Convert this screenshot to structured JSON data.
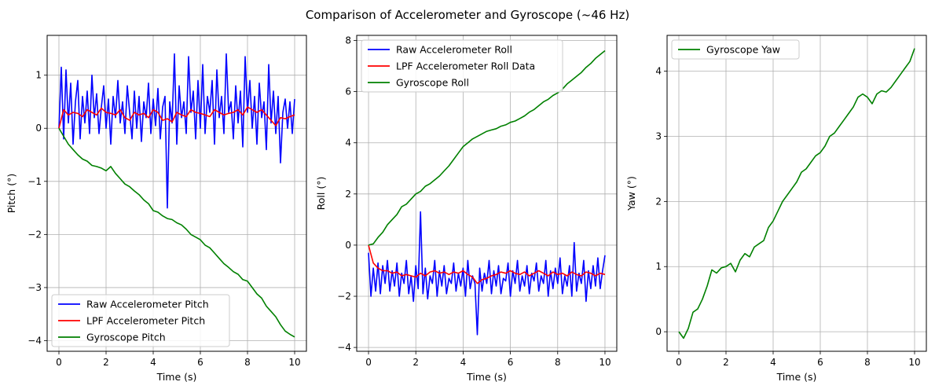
{
  "figure": {
    "title": "Comparison of Accelerometer and Gyroscope (~46 Hz)"
  },
  "colors": {
    "raw": "#0000ff",
    "lpf": "#ff0000",
    "gyro": "#008000",
    "grid": "#b0b0b0"
  },
  "chart_data": [
    {
      "type": "line",
      "xlabel": "Time (s)",
      "ylabel": "Pitch (°)",
      "xlim": [
        -0.5,
        10.5
      ],
      "ylim": [
        -4.2,
        1.75
      ],
      "xticks": [
        0,
        2,
        4,
        6,
        8,
        10
      ],
      "xtick_labels": [
        "0",
        "2",
        "4",
        "6",
        "8",
        "10"
      ],
      "yticks": [
        -4,
        -3,
        -2,
        -1,
        0,
        1
      ],
      "ytick_labels": [
        "−4",
        "−3",
        "−2",
        "−1",
        "0",
        "1"
      ],
      "grid": true,
      "legend_position": "lower-left",
      "series": [
        {
          "name": "Raw Accelerometer Pitch",
          "color": "#0000ff",
          "x": [
            0,
            0.1,
            0.2,
            0.3,
            0.4,
            0.5,
            0.6,
            0.7,
            0.8,
            0.9,
            1.0,
            1.1,
            1.2,
            1.3,
            1.4,
            1.5,
            1.6,
            1.7,
            1.8,
            1.9,
            2.0,
            2.1,
            2.2,
            2.3,
            2.4,
            2.5,
            2.6,
            2.7,
            2.8,
            2.9,
            3.0,
            3.1,
            3.2,
            3.3,
            3.4,
            3.5,
            3.6,
            3.7,
            3.8,
            3.9,
            4.0,
            4.1,
            4.2,
            4.3,
            4.4,
            4.5,
            4.6,
            4.7,
            4.8,
            4.9,
            5.0,
            5.1,
            5.2,
            5.3,
            5.4,
            5.5,
            5.6,
            5.7,
            5.8,
            5.9,
            6.0,
            6.1,
            6.2,
            6.3,
            6.4,
            6.5,
            6.6,
            6.7,
            6.8,
            6.9,
            7.0,
            7.1,
            7.2,
            7.3,
            7.4,
            7.5,
            7.6,
            7.7,
            7.8,
            7.9,
            8.0,
            8.1,
            8.2,
            8.3,
            8.4,
            8.5,
            8.6,
            8.7,
            8.8,
            8.9,
            9.0,
            9.1,
            9.2,
            9.3,
            9.4,
            9.5,
            9.6,
            9.7,
            9.8,
            9.9,
            10.0
          ],
          "y": [
            0.0,
            1.15,
            -0.2,
            1.1,
            0.1,
            0.85,
            -0.3,
            0.5,
            0.9,
            -0.2,
            0.6,
            0.1,
            0.7,
            -0.1,
            1.0,
            0.2,
            0.65,
            -0.1,
            0.4,
            0.8,
            0.0,
            0.55,
            -0.3,
            0.6,
            0.2,
            0.9,
            0.1,
            0.5,
            -0.1,
            0.8,
            0.3,
            -0.2,
            0.7,
            0.0,
            0.6,
            -0.25,
            0.5,
            0.2,
            0.85,
            -0.1,
            0.55,
            0.05,
            0.75,
            -0.2,
            0.4,
            0.6,
            -1.5,
            0.5,
            0.1,
            1.4,
            -0.3,
            0.8,
            0.2,
            0.5,
            -0.1,
            1.35,
            0.3,
            0.7,
            -0.2,
            0.9,
            0.0,
            1.2,
            -0.1,
            0.6,
            0.3,
            0.9,
            -0.3,
            1.1,
            0.2,
            0.6,
            -0.1,
            1.4,
            0.3,
            0.5,
            -0.2,
            0.8,
            0.1,
            0.7,
            -0.35,
            1.35,
            0.3,
            0.9,
            0.0,
            0.6,
            -0.3,
            0.85,
            0.2,
            0.5,
            -0.4,
            1.2,
            0.1,
            0.7,
            -0.1,
            0.6,
            -0.65,
            0.3,
            0.55,
            0.0,
            0.5,
            -0.1,
            0.55
          ]
        },
        {
          "name": "LPF Accelerometer Pitch",
          "color": "#ff0000",
          "x": [
            0,
            0.2,
            0.4,
            0.6,
            0.8,
            1.0,
            1.2,
            1.4,
            1.6,
            1.8,
            2.0,
            2.2,
            2.4,
            2.6,
            2.8,
            3.0,
            3.2,
            3.4,
            3.6,
            3.8,
            4.0,
            4.2,
            4.4,
            4.6,
            4.8,
            5.0,
            5.2,
            5.4,
            5.6,
            5.8,
            6.0,
            6.2,
            6.4,
            6.6,
            6.8,
            7.0,
            7.2,
            7.4,
            7.6,
            7.8,
            8.0,
            8.2,
            8.4,
            8.6,
            8.8,
            9.0,
            9.2,
            9.4,
            9.6,
            9.8,
            10.0
          ],
          "y": [
            0.0,
            0.35,
            0.25,
            0.3,
            0.28,
            0.22,
            0.35,
            0.3,
            0.25,
            0.38,
            0.3,
            0.28,
            0.25,
            0.35,
            0.2,
            0.15,
            0.3,
            0.25,
            0.28,
            0.2,
            0.35,
            0.3,
            0.15,
            0.18,
            0.12,
            0.3,
            0.25,
            0.22,
            0.35,
            0.3,
            0.28,
            0.25,
            0.22,
            0.35,
            0.3,
            0.25,
            0.28,
            0.3,
            0.35,
            0.25,
            0.4,
            0.35,
            0.3,
            0.35,
            0.25,
            0.15,
            0.05,
            0.2,
            0.18,
            0.22,
            0.25
          ]
        },
        {
          "name": "Gyroscope Pitch",
          "color": "#008000",
          "x": [
            0,
            0.2,
            0.4,
            0.6,
            0.8,
            1.0,
            1.2,
            1.4,
            1.6,
            1.8,
            2.0,
            2.2,
            2.4,
            2.6,
            2.8,
            3.0,
            3.2,
            3.4,
            3.6,
            3.8,
            4.0,
            4.2,
            4.4,
            4.6,
            4.8,
            5.0,
            5.2,
            5.4,
            5.6,
            5.8,
            6.0,
            6.2,
            6.4,
            6.6,
            6.8,
            7.0,
            7.2,
            7.4,
            7.6,
            7.8,
            8.0,
            8.2,
            8.4,
            8.6,
            8.8,
            9.0,
            9.2,
            9.4,
            9.6,
            9.8,
            10.0
          ],
          "y": [
            0.0,
            -0.15,
            -0.3,
            -0.4,
            -0.5,
            -0.58,
            -0.62,
            -0.7,
            -0.72,
            -0.75,
            -0.8,
            -0.72,
            -0.85,
            -0.95,
            -1.05,
            -1.1,
            -1.18,
            -1.25,
            -1.35,
            -1.42,
            -1.55,
            -1.58,
            -1.65,
            -1.7,
            -1.72,
            -1.78,
            -1.82,
            -1.9,
            -2.0,
            -2.05,
            -2.1,
            -2.2,
            -2.25,
            -2.35,
            -2.45,
            -2.55,
            -2.62,
            -2.7,
            -2.75,
            -2.85,
            -2.88,
            -3.0,
            -3.12,
            -3.2,
            -3.35,
            -3.45,
            -3.55,
            -3.7,
            -3.82,
            -3.88,
            -3.93
          ]
        }
      ]
    },
    {
      "type": "line",
      "xlabel": "Time (s)",
      "ylabel": "Roll (°)",
      "xlim": [
        -0.5,
        10.5
      ],
      "ylim": [
        -4.15,
        8.2
      ],
      "xticks": [
        0,
        2,
        4,
        6,
        8,
        10
      ],
      "xtick_labels": [
        "0",
        "2",
        "4",
        "6",
        "8",
        "10"
      ],
      "yticks": [
        -4,
        -2,
        0,
        2,
        4,
        6,
        8
      ],
      "ytick_labels": [
        "−4",
        "−2",
        "0",
        "2",
        "4",
        "6",
        "8"
      ],
      "grid": true,
      "legend_position": "upper-left",
      "series": [
        {
          "name": "Raw Accelerometer Roll",
          "color": "#0000ff",
          "x": [
            0,
            0.1,
            0.2,
            0.3,
            0.4,
            0.5,
            0.6,
            0.7,
            0.8,
            0.9,
            1.0,
            1.1,
            1.2,
            1.3,
            1.4,
            1.5,
            1.6,
            1.7,
            1.8,
            1.9,
            2.0,
            2.1,
            2.2,
            2.3,
            2.4,
            2.5,
            2.6,
            2.7,
            2.8,
            2.9,
            3.0,
            3.1,
            3.2,
            3.3,
            3.4,
            3.5,
            3.6,
            3.7,
            3.8,
            3.9,
            4.0,
            4.1,
            4.2,
            4.3,
            4.4,
            4.5,
            4.6,
            4.7,
            4.8,
            4.9,
            5.0,
            5.1,
            5.2,
            5.3,
            5.4,
            5.5,
            5.6,
            5.7,
            5.8,
            5.9,
            6.0,
            6.1,
            6.2,
            6.3,
            6.4,
            6.5,
            6.6,
            6.7,
            6.8,
            6.9,
            7.0,
            7.1,
            7.2,
            7.3,
            7.4,
            7.5,
            7.6,
            7.7,
            7.8,
            7.9,
            8.0,
            8.1,
            8.2,
            8.3,
            8.4,
            8.5,
            8.6,
            8.7,
            8.8,
            8.9,
            9.0,
            9.1,
            9.2,
            9.3,
            9.4,
            9.5,
            9.6,
            9.7,
            9.8,
            9.9,
            10.0
          ],
          "y": [
            -0.3,
            -2.0,
            -0.9,
            -1.8,
            -0.7,
            -1.9,
            -0.8,
            -1.5,
            -0.6,
            -1.8,
            -1.0,
            -1.6,
            -0.7,
            -2.0,
            -1.1,
            -1.5,
            -0.6,
            -1.9,
            -1.2,
            -2.2,
            -0.8,
            -1.7,
            1.3,
            -1.9,
            -0.9,
            -2.1,
            -1.2,
            -1.5,
            -0.6,
            -2.0,
            -1.0,
            -1.6,
            -0.8,
            -1.9,
            -1.3,
            -1.5,
            -0.7,
            -1.8,
            -1.1,
            -1.6,
            -0.9,
            -2.0,
            -0.6,
            -1.7,
            -1.2,
            -1.5,
            -3.5,
            -0.9,
            -1.8,
            -1.1,
            -1.5,
            -0.6,
            -1.9,
            -1.0,
            -1.6,
            -0.8,
            -1.9,
            -1.3,
            -1.4,
            -0.7,
            -2.0,
            -1.0,
            -1.5,
            -0.6,
            -1.8,
            -1.2,
            -1.6,
            -0.8,
            -1.9,
            -1.1,
            -1.4,
            -0.7,
            -1.8,
            -1.2,
            -1.5,
            -0.6,
            -2.0,
            -1.0,
            -1.7,
            -0.9,
            -1.5,
            -0.5,
            -1.9,
            -1.2,
            -1.6,
            -0.8,
            -2.0,
            0.1,
            -1.8,
            -1.1,
            -1.5,
            -0.6,
            -2.2,
            -1.0,
            -1.7,
            -0.8,
            -1.6,
            -0.5,
            -1.7,
            -1.0,
            -0.4
          ]
        },
        {
          "name": " LPF Accelerometer Roll Data",
          "color": "#ff0000",
          "x": [
            0,
            0.2,
            0.4,
            0.6,
            0.8,
            1.0,
            1.2,
            1.4,
            1.6,
            1.8,
            2.0,
            2.2,
            2.4,
            2.6,
            2.8,
            3.0,
            3.2,
            3.4,
            3.6,
            3.8,
            4.0,
            4.2,
            4.4,
            4.6,
            4.8,
            5.0,
            5.2,
            5.4,
            5.6,
            5.8,
            6.0,
            6.2,
            6.4,
            6.6,
            6.8,
            7.0,
            7.2,
            7.4,
            7.6,
            7.8,
            8.0,
            8.2,
            8.4,
            8.6,
            8.8,
            9.0,
            9.2,
            9.4,
            9.6,
            9.8,
            10.0
          ],
          "y": [
            0.0,
            -0.7,
            -0.9,
            -1.0,
            -1.0,
            -1.1,
            -1.05,
            -1.2,
            -1.15,
            -1.2,
            -1.25,
            -1.1,
            -1.2,
            -1.05,
            -1.0,
            -1.1,
            -1.05,
            -1.15,
            -1.05,
            -1.1,
            -1.0,
            -1.15,
            -1.25,
            -1.5,
            -1.35,
            -1.3,
            -1.2,
            -1.15,
            -1.05,
            -1.1,
            -1.0,
            -1.1,
            -1.15,
            -1.05,
            -1.2,
            -1.1,
            -1.0,
            -1.1,
            -1.2,
            -1.05,
            -1.15,
            -1.1,
            -1.2,
            -1.05,
            -1.15,
            -1.2,
            -1.05,
            -1.1,
            -1.2,
            -1.1,
            -1.15
          ]
        },
        {
          "name": "Gyroscope Roll",
          "color": "#008000",
          "x": [
            0,
            0.2,
            0.4,
            0.6,
            0.8,
            1.0,
            1.2,
            1.4,
            1.6,
            1.8,
            2.0,
            2.2,
            2.4,
            2.6,
            2.8,
            3.0,
            3.2,
            3.4,
            3.6,
            3.8,
            4.0,
            4.2,
            4.4,
            4.6,
            4.8,
            5.0,
            5.2,
            5.4,
            5.6,
            5.8,
            6.0,
            6.2,
            6.4,
            6.6,
            6.8,
            7.0,
            7.2,
            7.4,
            7.6,
            7.8,
            8.0,
            8.2,
            8.4,
            8.6,
            8.8,
            9.0,
            9.2,
            9.4,
            9.6,
            9.8,
            10.0
          ],
          "y": [
            0.0,
            0.05,
            0.3,
            0.5,
            0.8,
            1.0,
            1.2,
            1.5,
            1.6,
            1.8,
            2.0,
            2.1,
            2.3,
            2.4,
            2.55,
            2.7,
            2.9,
            3.1,
            3.35,
            3.6,
            3.85,
            4.0,
            4.15,
            4.25,
            4.35,
            4.45,
            4.5,
            4.55,
            4.65,
            4.7,
            4.8,
            4.85,
            4.95,
            5.05,
            5.2,
            5.3,
            5.45,
            5.6,
            5.7,
            5.85,
            5.95,
            6.1,
            6.3,
            6.45,
            6.6,
            6.75,
            6.95,
            7.1,
            7.3,
            7.45,
            7.6
          ]
        }
      ]
    },
    {
      "type": "line",
      "xlabel": "Time (s)",
      "ylabel": "Yaw (°)",
      "xlim": [
        -0.5,
        10.5
      ],
      "ylim": [
        -0.3,
        4.55
      ],
      "xticks": [
        0,
        2,
        4,
        6,
        8,
        10
      ],
      "xtick_labels": [
        "0",
        "2",
        "4",
        "6",
        "8",
        "10"
      ],
      "yticks": [
        0,
        1,
        2,
        3,
        4
      ],
      "ytick_labels": [
        "0",
        "1",
        "2",
        "3",
        "4"
      ],
      "grid": true,
      "legend_position": "upper-left",
      "series": [
        {
          "name": "Gyroscope Yaw",
          "color": "#008000",
          "x": [
            0,
            0.2,
            0.4,
            0.6,
            0.8,
            1.0,
            1.2,
            1.4,
            1.6,
            1.8,
            2.0,
            2.2,
            2.4,
            2.6,
            2.8,
            3.0,
            3.2,
            3.4,
            3.6,
            3.8,
            4.0,
            4.2,
            4.4,
            4.6,
            4.8,
            5.0,
            5.2,
            5.4,
            5.6,
            5.8,
            6.0,
            6.2,
            6.4,
            6.6,
            6.8,
            7.0,
            7.2,
            7.4,
            7.6,
            7.8,
            8.0,
            8.2,
            8.4,
            8.6,
            8.8,
            9.0,
            9.2,
            9.4,
            9.6,
            9.8,
            10.0
          ],
          "y": [
            0.0,
            -0.1,
            0.05,
            0.3,
            0.35,
            0.5,
            0.7,
            0.95,
            0.9,
            0.98,
            1.0,
            1.05,
            0.92,
            1.1,
            1.2,
            1.15,
            1.3,
            1.35,
            1.4,
            1.6,
            1.7,
            1.85,
            2.0,
            2.1,
            2.2,
            2.3,
            2.45,
            2.5,
            2.6,
            2.7,
            2.75,
            2.85,
            3.0,
            3.05,
            3.15,
            3.25,
            3.35,
            3.45,
            3.6,
            3.65,
            3.6,
            3.5,
            3.65,
            3.7,
            3.68,
            3.75,
            3.85,
            3.95,
            4.05,
            4.15,
            4.35
          ]
        }
      ]
    }
  ]
}
